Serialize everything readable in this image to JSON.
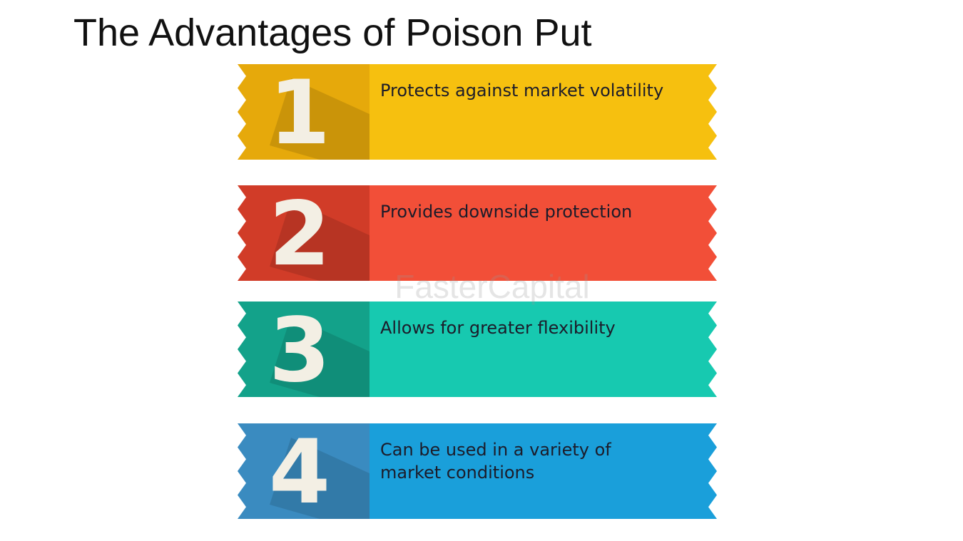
{
  "title": "The Advantages of Poison Put",
  "watermark": "FasterCapital",
  "items": [
    {
      "number": "1",
      "lines": [
        "Protects against market volatility"
      ],
      "color": "#f6c00f",
      "dark": "#e6a90b"
    },
    {
      "number": "2",
      "lines": [
        "Provides downside protection"
      ],
      "color": "#f24f38",
      "dark": "#d13c28"
    },
    {
      "number": "3",
      "lines": [
        "Allows for greater flexibility"
      ],
      "color": "#17c9b0",
      "dark": "#13a28a"
    },
    {
      "number": "4",
      "lines": [
        "Can be used in a variety of",
        "market conditions"
      ],
      "color": "#1a9fda",
      "dark": "#3a8bc0"
    }
  ]
}
